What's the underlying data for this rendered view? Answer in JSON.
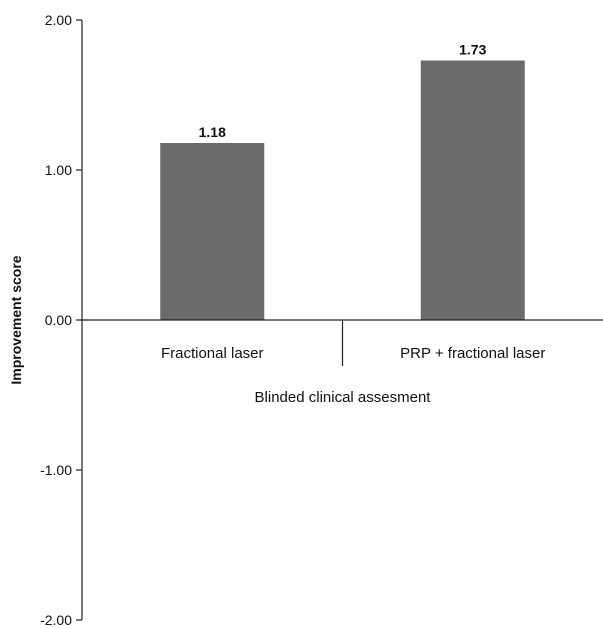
{
  "chart_data": {
    "type": "bar",
    "categories": [
      "Fractional laser",
      "PRP + fractional laser"
    ],
    "values": [
      1.18,
      1.73
    ],
    "value_labels": [
      "1.18",
      "1.73"
    ],
    "title": "",
    "xlabel": "Blinded clinical assesment",
    "ylabel": "Improvement score",
    "ylim": [
      -2,
      2
    ],
    "yticks": [
      2,
      1,
      0,
      -1,
      -2
    ],
    "ytick_labels": [
      "2.00",
      "1.00",
      "0.00",
      "-1.00",
      "-2.00"
    ],
    "grid": false,
    "legend": "none",
    "bar_color": "#6b6b6b"
  }
}
